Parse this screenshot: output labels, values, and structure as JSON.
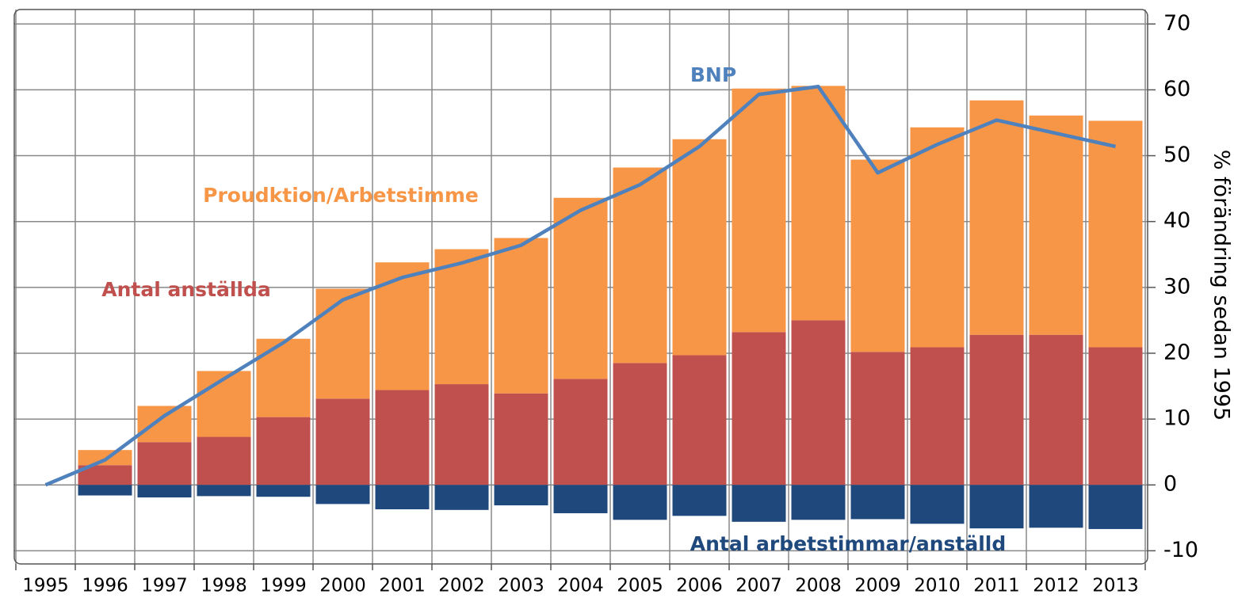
{
  "chart_data": {
    "type": "bar",
    "stacked": true,
    "y_label": "% förändring sedan 1995",
    "categories": [
      "1995",
      "1996",
      "1997",
      "1998",
      "1999",
      "2000",
      "2001",
      "2002",
      "2003",
      "2004",
      "2005",
      "2006",
      "2007",
      "2008",
      "2009",
      "2010",
      "2011",
      "2012",
      "2013"
    ],
    "series": [
      {
        "name": "Antal anställda",
        "color": "#c0504d",
        "values": [
          0,
          3.0,
          6.5,
          7.3,
          10.3,
          13.1,
          14.4,
          15.3,
          13.9,
          16.1,
          18.5,
          19.7,
          23.2,
          25.0,
          20.2,
          20.9,
          22.8,
          22.8,
          20.9
        ]
      },
      {
        "name": "Proudktion/Arbetstimme",
        "color": "#f79646",
        "values": [
          0,
          2.3,
          5.5,
          10.0,
          11.9,
          16.7,
          19.4,
          20.5,
          23.6,
          27.5,
          29.7,
          32.8,
          37.0,
          35.6,
          29.2,
          33.4,
          35.6,
          33.3,
          34.4
        ]
      },
      {
        "name": "Antal arbetstimmar/anställd",
        "color": "#1f497d",
        "values": [
          0,
          -1.6,
          -1.9,
          -1.7,
          -1.8,
          -2.9,
          -3.7,
          -3.8,
          -3.1,
          -4.3,
          -5.3,
          -4.7,
          -5.6,
          -5.3,
          -5.2,
          -5.9,
          -6.6,
          -6.5,
          -6.7
        ]
      },
      {
        "name": "BNP",
        "type": "line",
        "color": "#4f81bd",
        "values": [
          0,
          3.8,
          10.5,
          16.1,
          21.6,
          28.1,
          31.5,
          33.7,
          36.4,
          41.7,
          45.6,
          51.4,
          59.3,
          60.5,
          47.4,
          51.7,
          55.4,
          53.4,
          51.4
        ]
      }
    ],
    "ylim": [
      -12,
      72.2
    ],
    "yticks": [
      -10,
      0,
      10,
      20,
      30,
      40,
      50,
      60,
      70
    ],
    "grid": true
  }
}
